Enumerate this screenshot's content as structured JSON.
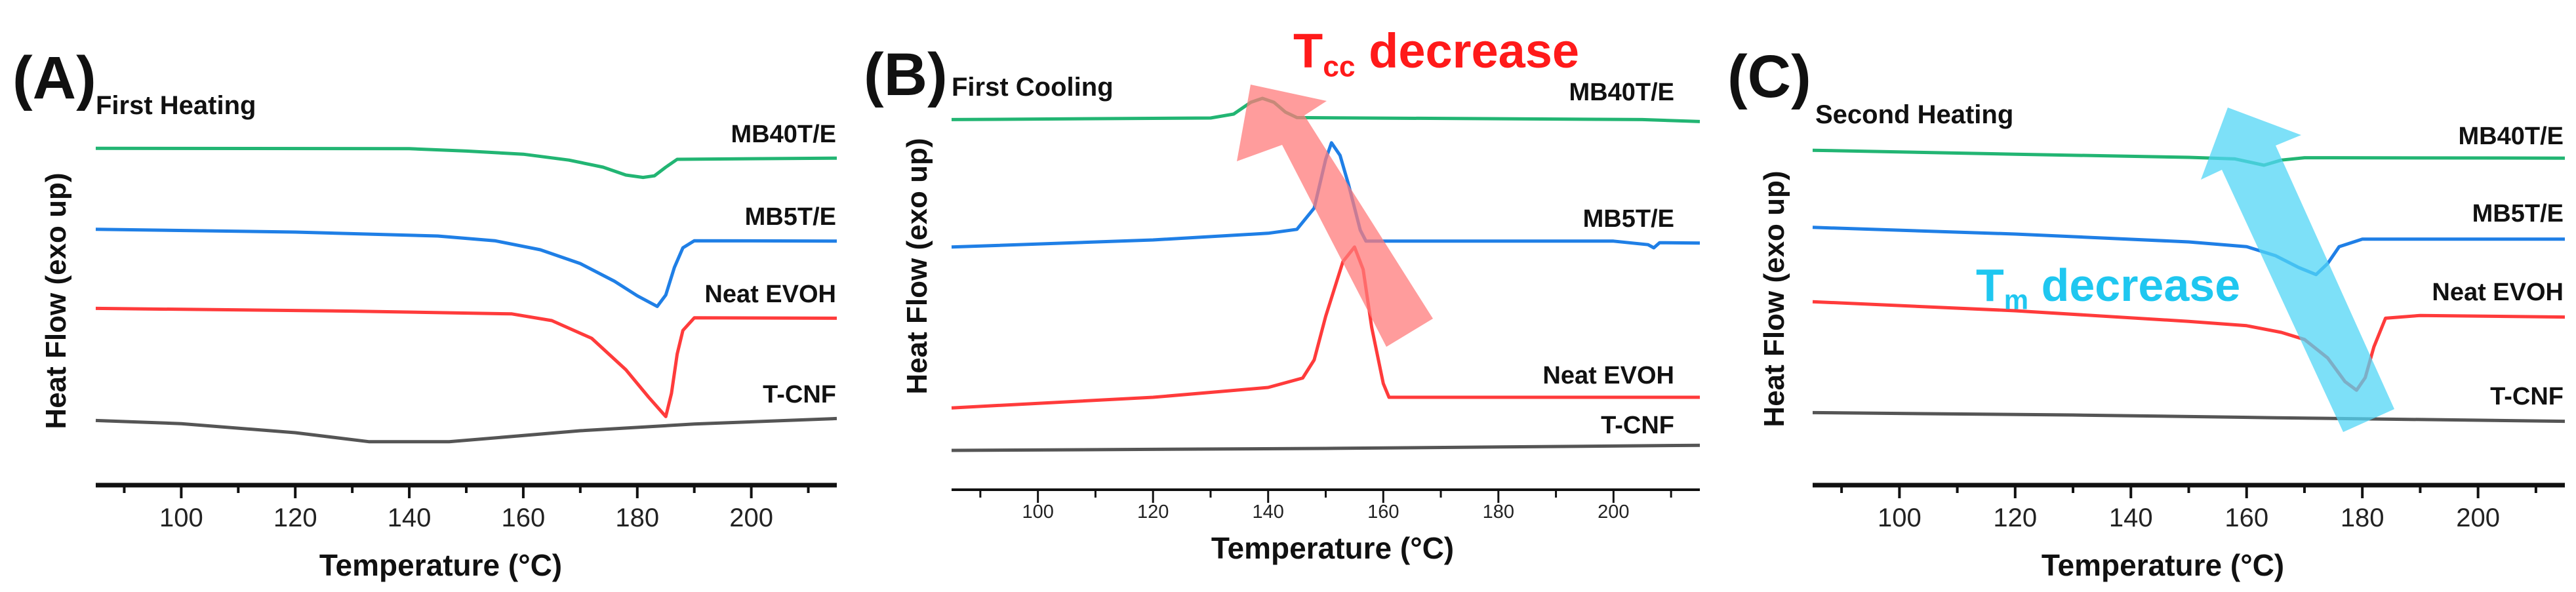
{
  "chart_data": [
    {
      "type": "line",
      "panel_label": "(A)",
      "title": "First Heating",
      "xlabel": "Temperature (°C)",
      "ylabel": "Heat Flow (exo up)",
      "xlim": [
        85,
        215
      ],
      "ylim": [
        0,
        100
      ],
      "y_units": "a.u.",
      "xticks": [
        100,
        120,
        140,
        160,
        180,
        200
      ],
      "xtick_labels": [
        "100",
        "120",
        "140",
        "160",
        "180",
        "200"
      ],
      "grid": false,
      "series": [
        {
          "name": "MB40T/E",
          "color": "#22b573",
          "points": [
            [
              85,
              85.3
            ],
            [
              140,
              85.2
            ],
            [
              150,
              84.6
            ],
            [
              160,
              83.8
            ],
            [
              168,
              82.3
            ],
            [
              174,
              80.5
            ],
            [
              178,
              78.5
            ],
            [
              181,
              77.9
            ],
            [
              183,
              78.3
            ],
            [
              185,
              80.5
            ],
            [
              187,
              82.5
            ],
            [
              215,
              82.8
            ]
          ]
        },
        {
          "name": "MB5T/E",
          "color": "#1f7fe6",
          "points": [
            [
              85,
              64.7
            ],
            [
              120,
              64
            ],
            [
              145,
              63
            ],
            [
              155,
              61.8
            ],
            [
              163,
              59.5
            ],
            [
              170,
              56
            ],
            [
              176,
              51.5
            ],
            [
              180,
              47.8
            ],
            [
              183.5,
              45.1
            ],
            [
              185,
              48
            ],
            [
              186.5,
              55
            ],
            [
              188,
              60
            ],
            [
              190,
              61.8
            ],
            [
              215,
              61.7
            ]
          ]
        },
        {
          "name": "Neat EVOH",
          "color": "#ff3b3b",
          "points": [
            [
              85,
              44.6
            ],
            [
              130,
              43.9
            ],
            [
              158,
              43.2
            ],
            [
              165,
              41.5
            ],
            [
              172,
              37
            ],
            [
              178,
              29
            ],
            [
              182,
              22
            ],
            [
              185,
              17.1
            ],
            [
              186,
              23
            ],
            [
              187,
              33
            ],
            [
              188,
              39
            ],
            [
              190,
              42.2
            ],
            [
              215,
              42.1
            ]
          ]
        },
        {
          "name": "T-CNF",
          "color": "#555555",
          "points": [
            [
              85,
              16.1
            ],
            [
              100,
              15.3
            ],
            [
              120,
              13
            ],
            [
              133,
              10.7
            ],
            [
              147,
              10.7
            ],
            [
              170,
              13.5
            ],
            [
              190,
              15.2
            ],
            [
              215,
              16.6
            ]
          ]
        }
      ]
    },
    {
      "type": "line",
      "panel_label": "(B)",
      "title": "First Cooling",
      "xlabel": "Temperature (°C)",
      "ylabel": "Heat Flow (exo up)",
      "xlim": [
        85,
        215
      ],
      "ylim": [
        0,
        100
      ],
      "y_units": "a.u.",
      "xticks": [
        100,
        120,
        140,
        160,
        180,
        200
      ],
      "xtick_labels": [
        "100",
        "120",
        "140",
        "160",
        "180",
        "200"
      ],
      "grid": false,
      "annotation": {
        "main": "T",
        "sub": "cc",
        "rest": " decrease",
        "color": "#ff1a1a",
        "arrow_color": "#ff7b7b",
        "direction": "toward lower temperature"
      },
      "series": [
        {
          "name": "MB40T/E",
          "color": "#22b573",
          "points": [
            [
              85,
              94.1
            ],
            [
              130,
              94.5
            ],
            [
              134,
              95.5
            ],
            [
              137,
              98.5
            ],
            [
              139,
              99.5
            ],
            [
              141,
              98.5
            ],
            [
              143,
              96
            ],
            [
              145,
              94.6
            ],
            [
              205,
              94.1
            ],
            [
              215,
              93.6
            ]
          ]
        },
        {
          "name": "MB5T/E",
          "color": "#1f7fe6",
          "points": [
            [
              85,
              61.7
            ],
            [
              120,
              63.5
            ],
            [
              140,
              65.2
            ],
            [
              145,
              66.2
            ],
            [
              148,
              71.6
            ],
            [
              150,
              84
            ],
            [
              151,
              88.2
            ],
            [
              152.5,
              85
            ],
            [
              154,
              77.4
            ],
            [
              156,
              66
            ],
            [
              157,
              63.2
            ],
            [
              200,
              63.2
            ],
            [
              206,
              62.3
            ],
            [
              207,
              61.5
            ],
            [
              208,
              62.8
            ],
            [
              215,
              62.7
            ]
          ]
        },
        {
          "name": "Neat EVOH",
          "color": "#ff3b3b",
          "points": [
            [
              85,
              20.8
            ],
            [
              120,
              23.5
            ],
            [
              140,
              26
            ],
            [
              146,
              28.4
            ],
            [
              148,
              33
            ],
            [
              150,
              44.1
            ],
            [
              153,
              58
            ],
            [
              155,
              61.7
            ],
            [
              156.5,
              56
            ],
            [
              158,
              41.2
            ],
            [
              160,
              27
            ],
            [
              161,
              23.5
            ],
            [
              215,
              23.5
            ]
          ]
        },
        {
          "name": "T-CNF",
          "color": "#555555",
          "points": [
            [
              85,
              10
            ],
            [
              150,
              10.5
            ],
            [
              215,
              11.3
            ]
          ]
        }
      ]
    },
    {
      "type": "line",
      "panel_label": "(C)",
      "title": "Second Heating",
      "xlabel": "Temperature (°C)",
      "ylabel": "Heat Flow (exo up)",
      "xlim": [
        85,
        215
      ],
      "ylim": [
        0,
        100
      ],
      "y_units": "a.u.",
      "xticks": [
        100,
        120,
        140,
        160,
        180,
        200
      ],
      "xtick_labels": [
        "100",
        "120",
        "140",
        "160",
        "180",
        "200"
      ],
      "grid": false,
      "annotation": {
        "main": "T",
        "sub": "m",
        "rest": " decrease",
        "color": "#1fc7f0",
        "arrow_color": "#52d6f6",
        "direction": "toward lower temperature"
      },
      "series": [
        {
          "name": "MB40T/E",
          "color": "#22b573",
          "points": [
            [
              85,
              84.8
            ],
            [
              120,
              83.8
            ],
            [
              150,
              83
            ],
            [
              158,
              82.6
            ],
            [
              163,
              81
            ],
            [
              166,
              82.3
            ],
            [
              170,
              82.9
            ],
            [
              215,
              82.8
            ]
          ]
        },
        {
          "name": "MB5T/E",
          "color": "#1f7fe6",
          "points": [
            [
              85,
              65.2
            ],
            [
              120,
              63.5
            ],
            [
              150,
              61.5
            ],
            [
              160,
              60.3
            ],
            [
              165,
              58
            ],
            [
              169,
              55
            ],
            [
              172,
              53.2
            ],
            [
              174,
              56
            ],
            [
              176,
              60.3
            ],
            [
              180,
              62.2
            ],
            [
              215,
              62.2
            ]
          ]
        },
        {
          "name": "Neat EVOH",
          "color": "#ff3b3b",
          "points": [
            [
              85,
              46.3
            ],
            [
              120,
              44
            ],
            [
              150,
              41.3
            ],
            [
              160,
              40.2
            ],
            [
              166,
              38.5
            ],
            [
              170,
              36.7
            ],
            [
              174,
              32
            ],
            [
              177,
              26
            ],
            [
              179,
              23.8
            ],
            [
              180.5,
              27
            ],
            [
              182,
              34.8
            ],
            [
              184,
              42.1
            ],
            [
              190,
              42.8
            ],
            [
              215,
              42.4
            ]
          ]
        },
        {
          "name": "T-CNF",
          "color": "#555555",
          "points": [
            [
              85,
              18.1
            ],
            [
              130,
              17.5
            ],
            [
              165,
              16.8
            ],
            [
              215,
              15.9
            ]
          ]
        }
      ]
    }
  ]
}
